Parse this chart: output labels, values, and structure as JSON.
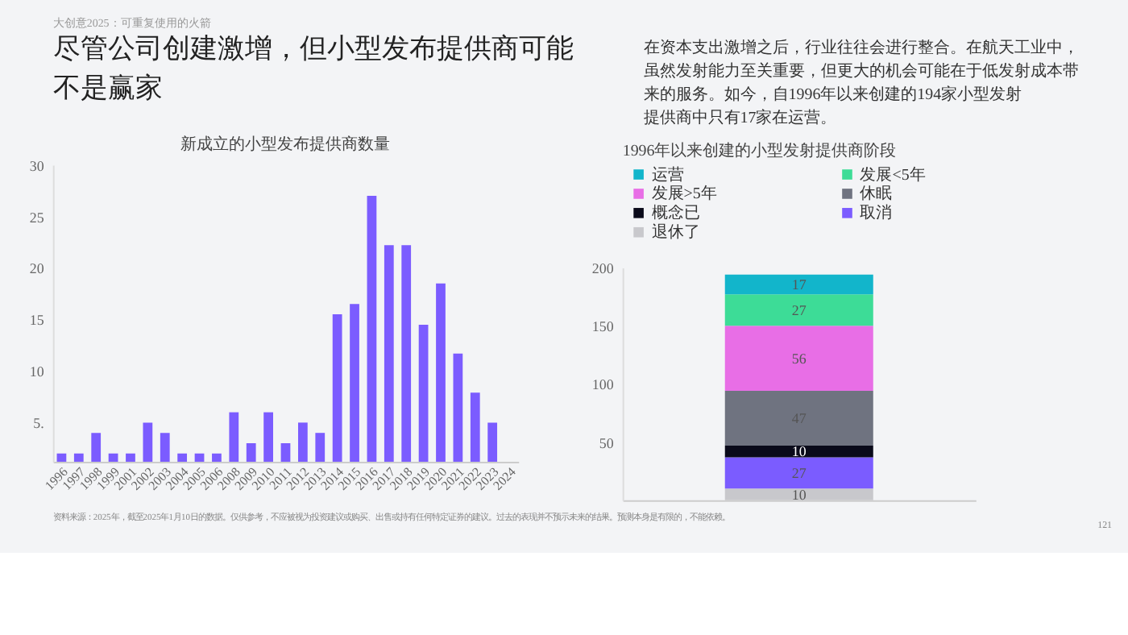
{
  "chart_data": [
    {
      "type": "bar",
      "title": "新成立的小型发布提供商数量",
      "categories": [
        "1996",
        "1997",
        "1998",
        "1999",
        "2001",
        "2002",
        "2003",
        "2004",
        "2005",
        "2006",
        "2008",
        "2009",
        "2010",
        "2011",
        "2012",
        "2013",
        "2014",
        "2015",
        "2016",
        "2017",
        "2018",
        "2019",
        "2020",
        "2021",
        "2022",
        "2023",
        "2024"
      ],
      "values": [
        2,
        2,
        4,
        2,
        2,
        5,
        4,
        2,
        2,
        2,
        6,
        3,
        6,
        3,
        5,
        4,
        15.5,
        16.5,
        27,
        22.2,
        22.2,
        14.5,
        18.5,
        11.7,
        7.9,
        5,
        null
      ],
      "color": "#7b5cff",
      "ylim": [
        1.2,
        30
      ],
      "yticks": [
        {
          "value": 5,
          "label": "5."
        },
        10,
        15,
        20,
        25,
        30
      ],
      "grid": false,
      "annotations": [
        "大创意2025：可重复使用的火箭",
        "尽管公司创建激增，但小型发布提供商可能不是赢家",
        "在资本支出激增之后，行业往往会进行整合。在航天工业中，虽然发射能力至关重要，但更大的机会可能在于低发射成本带来的服务。如今，自1996年以来创建的194家小型发射提供商中只有17家在运营。",
        "资料来源：2025年，截至2025年1月10日的数据。仅供参考，不应被视为投资建议或购买、出售或持有任何特定证券的建议。过去的表现并不预示未来的结果。预测本身是有限的，不能依赖。",
        "121"
      ]
    },
    {
      "type": "bar",
      "title": "1996年以来创建的小型发射提供商阶段",
      "stacked": true,
      "categories": [
        null
      ],
      "series": [
        {
          "name": "退休了",
          "color": "#c8c8cc",
          "values": [
            10
          ]
        },
        {
          "name": "取消",
          "color": "#7b5cff",
          "values": [
            27
          ]
        },
        {
          "name": "概念已",
          "color": "#0a0a1a",
          "values": [
            10
          ]
        },
        {
          "name": "休眠",
          "color": "#6f7380",
          "values": [
            47
          ]
        },
        {
          "name": "发展>5年",
          "color": "#e86ee6",
          "values": [
            56
          ]
        },
        {
          "name": "发展<5年",
          "color": "#3ddc97",
          "values": [
            27
          ]
        },
        {
          "name": "运营",
          "color": "#12b5cb",
          "values": [
            17
          ]
        }
      ],
      "ylim": [
        0,
        200
      ],
      "yticks": [
        50,
        100,
        150,
        200
      ],
      "grid": false,
      "legend": "top",
      "data_labels": true,
      "tick_labels": "y"
    }
  ]
}
